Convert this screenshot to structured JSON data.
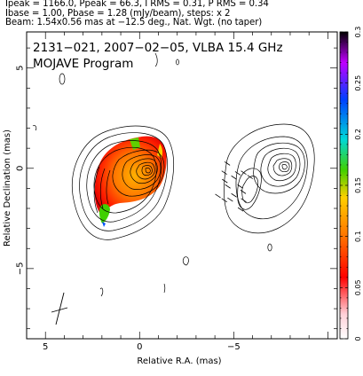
{
  "header": {
    "line1": "Ipeak = 1166.0, Ppeak = 66.3, I RMS = 0.31, P RMS = 0.34",
    "line2": "Ibase = 1.00, Pbase = 1.28 (mJy/beam), steps: x 2",
    "line3": "Beam: 1.54x0.56 mas at −12.5 deg., Nat. Wgt. (no taper)"
  },
  "plot": {
    "title": "2131−021, 2007−02−05, VLBA 15.4 GHz",
    "subtitle": "MOJAVE Program"
  },
  "chart_data": {
    "type": "contour",
    "xlabel": "Relative R.A. (mas)",
    "ylabel": "Relative Declination (mas)",
    "xlim": [
      6,
      -10.5
    ],
    "ylim": [
      -8.5,
      6.8
    ],
    "xticks": [
      5,
      0,
      -5
    ],
    "xtick_labels": [
      "5",
      "0",
      "−5"
    ],
    "yticks": [
      5,
      0,
      -5
    ],
    "ytick_labels": [
      "5",
      "0",
      "−5"
    ],
    "colorbar": {
      "range": [
        0,
        0.3
      ],
      "ticks": [
        0,
        0.05,
        0.1,
        0.15,
        0.2,
        0.25,
        0.3
      ],
      "tick_labels": [
        "0",
        "0.05",
        "0.1",
        "0.15",
        "0.2",
        "0.25",
        "0.3"
      ]
    },
    "panels": [
      {
        "name": "total-intensity",
        "core": [
          0.3,
          0.2
        ],
        "features": [
          "contours",
          "polarization-color"
        ]
      },
      {
        "name": "polarization",
        "core": [
          -6.9,
          0.2
        ],
        "features": [
          "contours",
          "evpa-ticks"
        ]
      }
    ],
    "beam": {
      "major_mas": 1.54,
      "minor_mas": 0.56,
      "pa_deg": -12.5,
      "position": [
        4.2,
        -6.6
      ]
    }
  }
}
